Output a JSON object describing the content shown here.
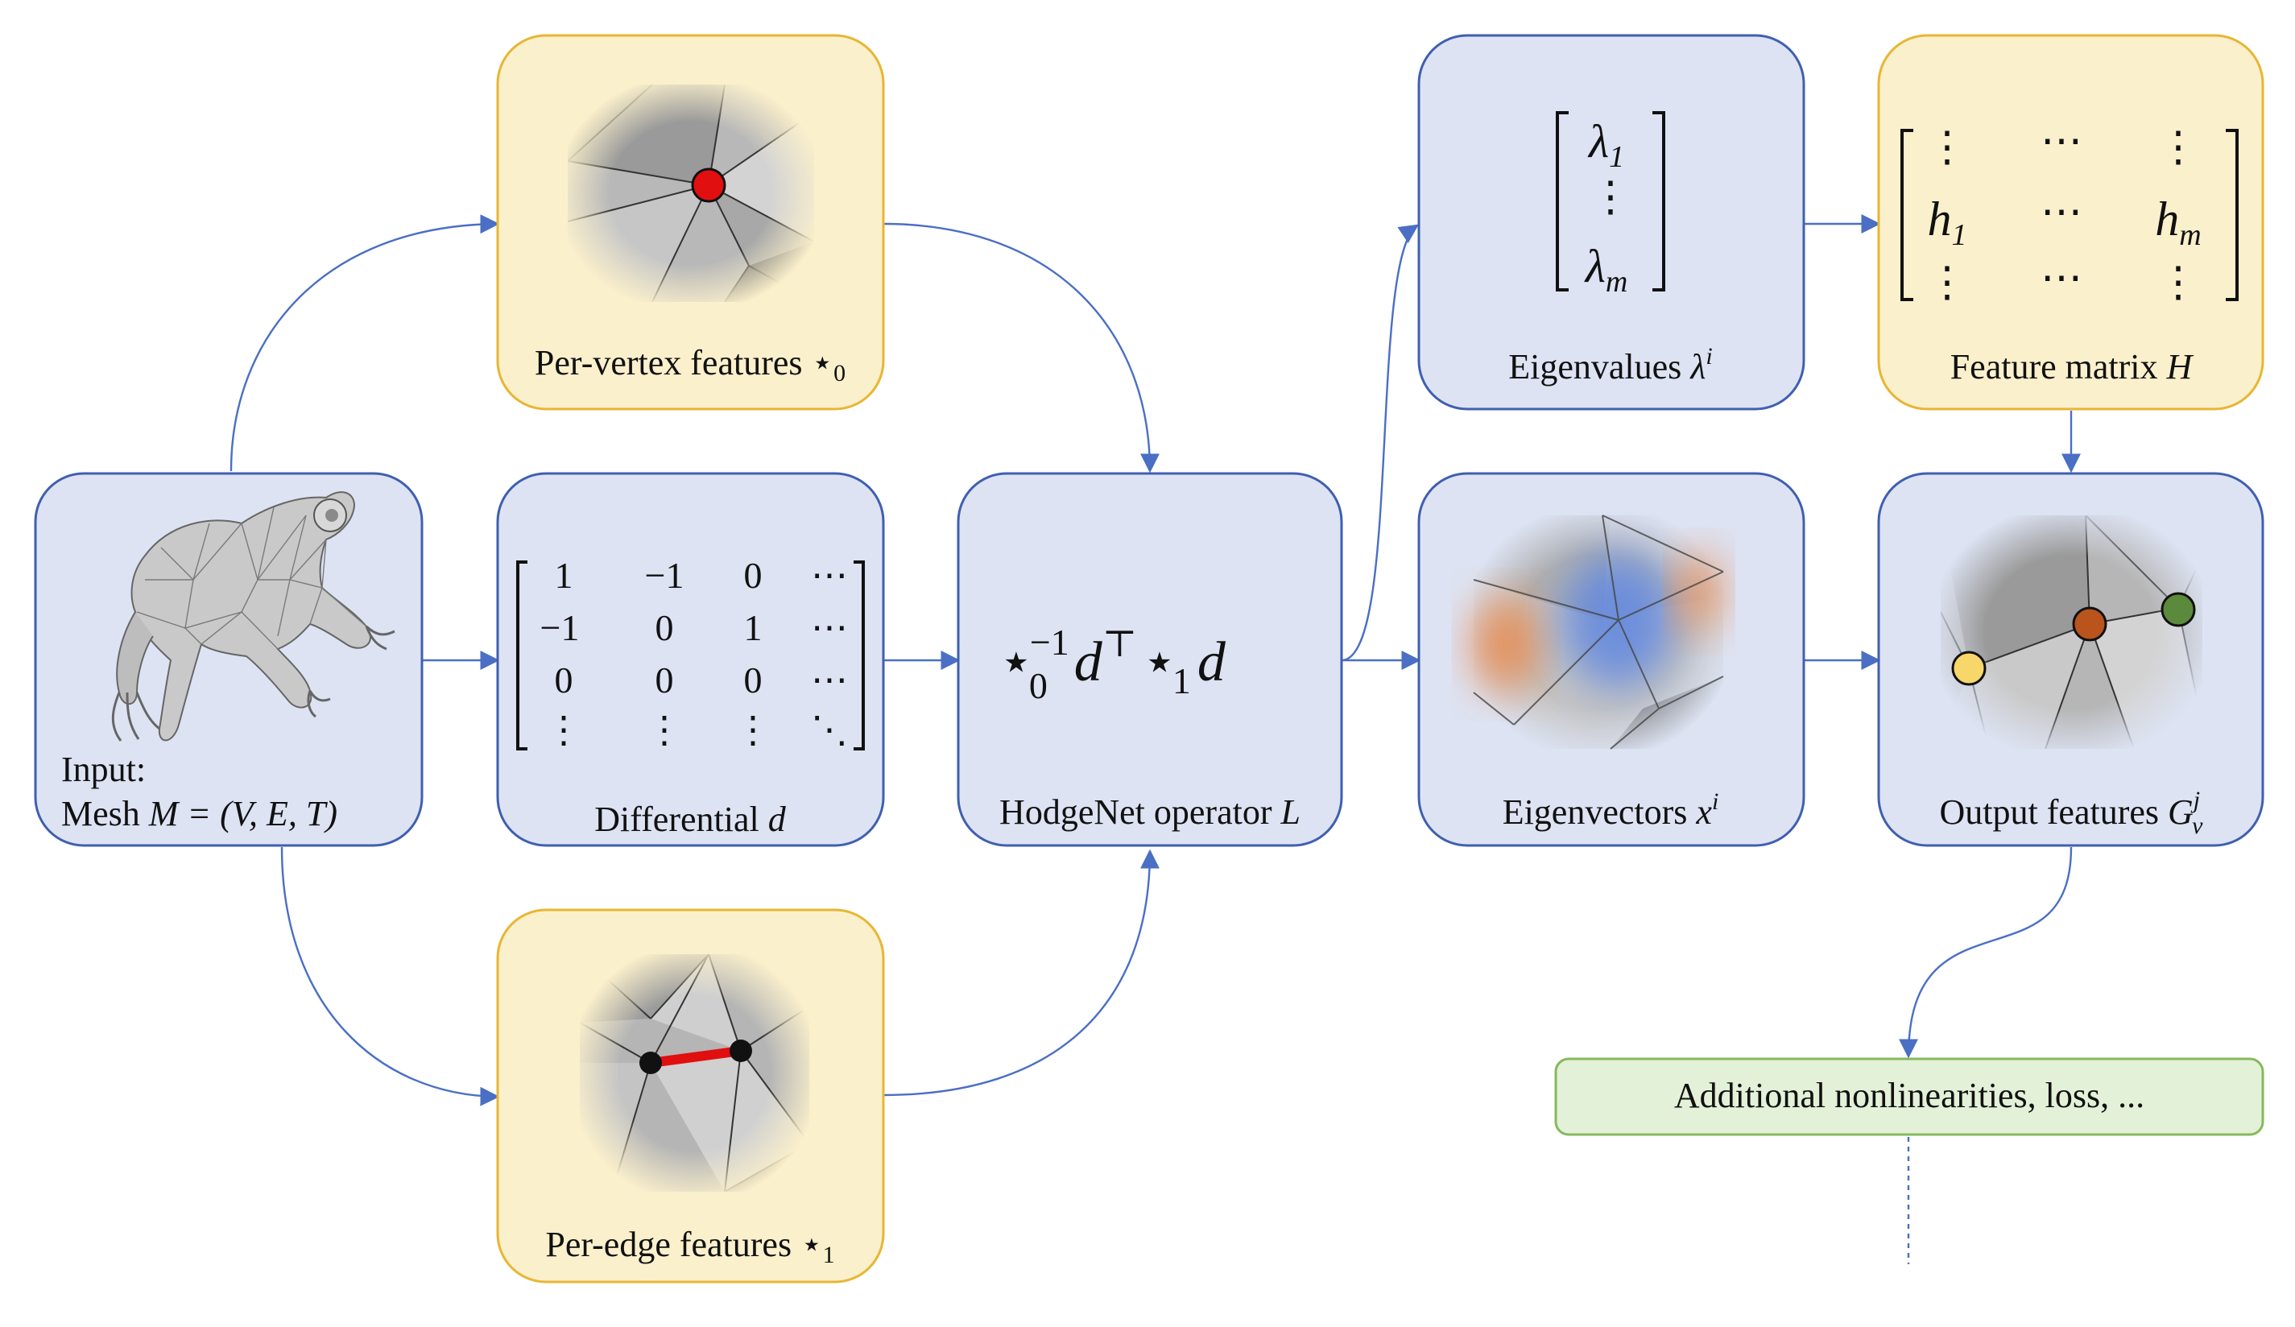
{
  "colors": {
    "blue_fill": "#dde3f3",
    "blue_stroke": "#3f5fb0",
    "yellow_fill": "#fbf0cc",
    "yellow_stroke": "#e7b633",
    "green_fill": "#e3f1d8",
    "green_stroke": "#86b95c",
    "arrow": "#4a6fc4",
    "highlight_red": "#e10f0f",
    "eig_orange": "#e8874a",
    "eig_blue": "#5f86e0",
    "node_yellow": "#f7d66a",
    "node_orange": "#b9541c",
    "node_green": "#5b8a3c"
  },
  "nodes": {
    "input": {
      "line1": "Input:",
      "prefix": "Mesh ",
      "math": "M = (V, E, T)",
      "icon": "frog-mesh-icon"
    },
    "per_vertex": {
      "prefix": "Per-vertex features ",
      "sym": "⋆",
      "sub": "0"
    },
    "differential": {
      "prefix": "Differential ",
      "math": "d",
      "matrix": [
        [
          "1",
          "−1",
          "0",
          "⋯"
        ],
        [
          "−1",
          "0",
          "1",
          "⋯"
        ],
        [
          "0",
          "0",
          "0",
          "⋯"
        ],
        [
          "⋮",
          "⋮",
          "⋮",
          "⋱"
        ]
      ]
    },
    "per_edge": {
      "prefix": "Per-edge features ",
      "sym": "⋆",
      "sub": "1"
    },
    "hodgenet": {
      "prefix": "HodgeNet operator ",
      "math": "L",
      "formula": {
        "star0": "⋆",
        "sub0": "0",
        "sup0": "−1",
        "d1": "d",
        "top": "⊤",
        "star1": "⋆",
        "sub1": "1",
        "d2": "d"
      }
    },
    "eigenvalues": {
      "prefix": "Eigenvalues ",
      "math": "λ",
      "sup": "i",
      "vector": [
        "λ",
        "⋮",
        "λ"
      ],
      "subs": [
        "1",
        "",
        "m"
      ]
    },
    "eigenvectors": {
      "prefix": "Eigenvectors ",
      "math": "x",
      "sup": "i"
    },
    "feature_matrix": {
      "prefix": "Feature matrix ",
      "math": "H",
      "matrix": [
        [
          "⋮",
          "⋯",
          "⋮"
        ],
        [
          "h",
          "⋯",
          "h"
        ],
        [
          "⋮",
          "⋯",
          "⋮"
        ]
      ],
      "subs": [
        "1",
        "m"
      ]
    },
    "output": {
      "prefix": "Output features ",
      "math": "G",
      "sup": "j",
      "sub": "v"
    },
    "additional": {
      "label": "Additional nonlinearities, loss, ..."
    }
  }
}
